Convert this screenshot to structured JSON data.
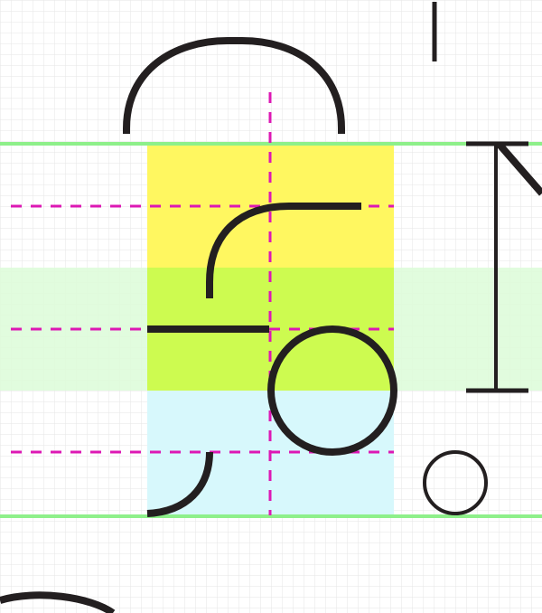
{
  "colors": {
    "background": "#ffffff",
    "grid": "#e6e6e6",
    "guide_line": "#8ef08a",
    "band_green": "#dcfcd8",
    "fill_yellow": "#fff760",
    "fill_lime": "#cdfb50",
    "fill_cyan": "#d7f8fc",
    "dash": "#dd18b4",
    "stroke": "#231f20"
  },
  "elements": {
    "guide_lines": 2,
    "dashed_horizontal": 3,
    "dashed_vertical": 1,
    "dimension_marker": "i-beam",
    "circles": 2
  }
}
